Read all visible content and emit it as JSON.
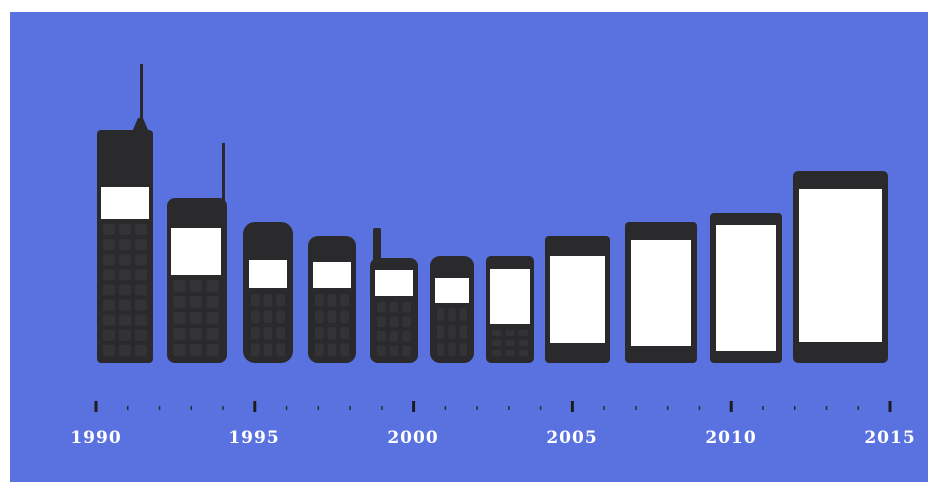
{
  "timeline": {
    "start_year": 1990,
    "end_year": 2015,
    "year_labels": [
      "1990",
      "1995",
      "2000",
      "2005",
      "2010",
      "2015"
    ]
  },
  "phones": [
    {
      "era": "brick-with-antenna"
    },
    {
      "era": "brick-with-antenna"
    },
    {
      "era": "candybar"
    },
    {
      "era": "candybar"
    },
    {
      "era": "candybar-stub-antenna"
    },
    {
      "era": "candybar"
    },
    {
      "era": "keypad-screen"
    },
    {
      "era": "touchscreen"
    },
    {
      "era": "touchscreen"
    },
    {
      "era": "touchscreen"
    },
    {
      "era": "phablet"
    }
  ],
  "colors": {
    "background": "#5a72e0",
    "phone_body": "#2a2a2c",
    "screen": "#ffffff",
    "label": "#ffffff"
  }
}
